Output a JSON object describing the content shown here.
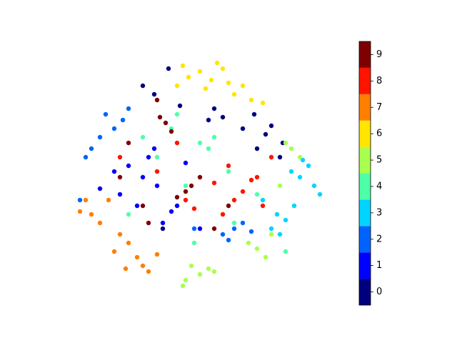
{
  "chart_data": {
    "type": "scatter",
    "xlim": [
      -50,
      50
    ],
    "ylim": [
      -50,
      50
    ],
    "colorbar": true,
    "series": [
      {
        "name": "0",
        "color": "#00007f",
        "x": [
          23,
          25,
          29,
          19,
          15,
          5,
          3,
          8,
          -16,
          -20,
          28,
          20,
          -11,
          -7,
          -13
        ],
        "y": [
          13,
          16,
          10,
          20,
          15,
          22,
          18,
          19,
          27,
          30,
          5,
          8,
          36,
          23,
          -20
        ]
      },
      {
        "name": "1",
        "color": "#0000ff",
        "x": [
          -20,
          -25,
          -15,
          -18,
          -28,
          -10,
          -13,
          -8,
          -22,
          -30,
          -5,
          -16,
          -35,
          0
        ],
        "y": [
          -2,
          2,
          -5,
          5,
          -8,
          -14,
          -18,
          -12,
          -12,
          0,
          3,
          8,
          -6,
          -20
        ]
      },
      {
        "name": "2",
        "color": "#0063ff",
        "x": [
          -30,
          -33,
          -27,
          -38,
          -35,
          -40,
          -25,
          12,
          15,
          8,
          18,
          10,
          -2,
          -42
        ],
        "y": [
          15,
          20,
          18,
          8,
          12,
          5,
          22,
          -20,
          -18,
          -22,
          -21,
          -24,
          -20,
          -10
        ]
      },
      {
        "name": "3",
        "color": "#00d4ff",
        "x": [
          35,
          38,
          32,
          40,
          36,
          30,
          27,
          33,
          25,
          42,
          22,
          28
        ],
        "y": [
          -2,
          2,
          0,
          -5,
          4,
          -17,
          -15,
          -12,
          -20,
          -8,
          -10,
          -22
        ]
      },
      {
        "name": "4",
        "color": "#4effa9",
        "x": [
          3,
          0,
          -10,
          -5,
          5,
          10,
          -15,
          20,
          -25,
          12,
          -2,
          -8,
          30,
          -20
        ],
        "y": [
          8,
          10,
          15,
          -5,
          12,
          0,
          5,
          -8,
          -15,
          -18,
          -25,
          20,
          -28,
          12
        ]
      },
      {
        "name": "5",
        "color": "#a9ff4e",
        "x": [
          0,
          -5,
          3,
          -6,
          5,
          20,
          23,
          17,
          25,
          32,
          35,
          30,
          28,
          -3
        ],
        "y": [
          -36,
          -38,
          -34,
          -40,
          -35,
          -27,
          -30,
          -25,
          -22,
          8,
          5,
          10,
          -5,
          -33
        ]
      },
      {
        "name": "6",
        "color": "#ffe500",
        "x": [
          0,
          4,
          8,
          -4,
          -8,
          2,
          10,
          12,
          18,
          22,
          -6,
          6,
          15
        ],
        "y": [
          35,
          32,
          36,
          33,
          30,
          29,
          31,
          27,
          25,
          24,
          37,
          38,
          30
        ]
      },
      {
        "name": "7",
        "color": "#ff7f00",
        "x": [
          -25,
          -22,
          -28,
          -20,
          -30,
          -38,
          -42,
          -35,
          -32,
          -18,
          -26,
          -40,
          -15
        ],
        "y": [
          -25,
          -30,
          -22,
          -33,
          -28,
          -15,
          -14,
          -18,
          -10,
          -35,
          -34,
          -10,
          -29
        ]
      },
      {
        "name": "8",
        "color": "#ff1400",
        "x": [
          15,
          18,
          12,
          20,
          -5,
          -2,
          8,
          25,
          -15,
          5,
          10,
          22,
          -8,
          -28
        ],
        "y": [
          -7,
          -3,
          -10,
          -2,
          -10,
          -13,
          -15,
          5,
          0,
          -4,
          2,
          -12,
          10,
          5
        ]
      },
      {
        "name": "9",
        "color": "#7f0000",
        "x": [
          -5,
          -3,
          -8,
          -12,
          -14,
          -10,
          0,
          -18,
          5,
          -25,
          -15,
          10,
          -28,
          -20
        ],
        "y": [
          -7,
          -5,
          -9,
          17,
          19,
          14,
          -2,
          -18,
          -20,
          10,
          25,
          -12,
          -2,
          -12
        ]
      }
    ]
  }
}
